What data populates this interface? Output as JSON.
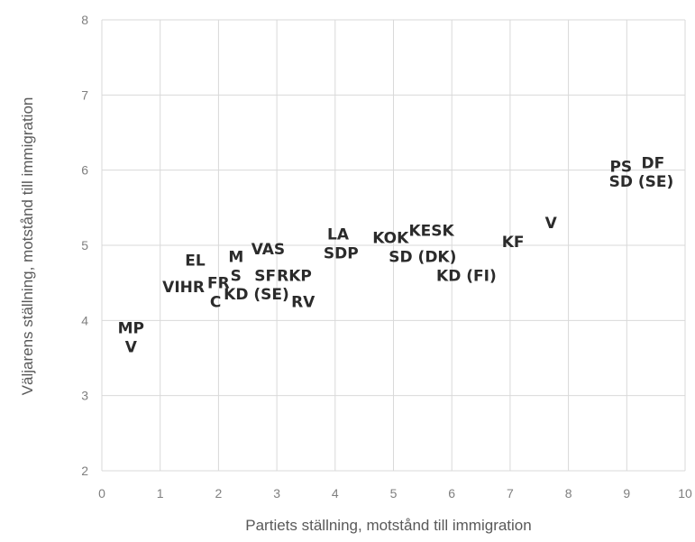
{
  "chart_data": {
    "type": "scatter",
    "xlabel": "Partiets ställning, motstånd till immigration",
    "ylabel": "Väljarens ställning, motstånd till immigration",
    "xlim": [
      0,
      10
    ],
    "ylim": [
      2,
      8
    ],
    "x_ticks": [
      "0",
      "1",
      "2",
      "3",
      "4",
      "5",
      "6",
      "7",
      "8",
      "9",
      "10"
    ],
    "y_ticks": [
      "2",
      "3",
      "4",
      "5",
      "6",
      "7",
      "8"
    ],
    "grid": true,
    "points": [
      {
        "label": "MP",
        "x": 0.5,
        "y": 3.9
      },
      {
        "label": "V",
        "x": 0.5,
        "y": 3.65
      },
      {
        "label": "VIHR",
        "x": 1.4,
        "y": 4.45
      },
      {
        "label": "EL",
        "x": 1.6,
        "y": 4.8
      },
      {
        "label": "FR",
        "x": 2.0,
        "y": 4.5
      },
      {
        "label": "C",
        "x": 1.95,
        "y": 4.25
      },
      {
        "label": "M",
        "x": 2.3,
        "y": 4.85
      },
      {
        "label": "S",
        "x": 2.3,
        "y": 4.6
      },
      {
        "label": "KD (SE)",
        "x": 2.65,
        "y": 4.35
      },
      {
        "label": "VAS",
        "x": 2.85,
        "y": 4.95
      },
      {
        "label": "SF",
        "x": 2.8,
        "y": 4.6
      },
      {
        "label": "RKP",
        "x": 3.3,
        "y": 4.6
      },
      {
        "label": "RV",
        "x": 3.45,
        "y": 4.25
      },
      {
        "label": "LA",
        "x": 4.05,
        "y": 5.15
      },
      {
        "label": "SDP",
        "x": 4.1,
        "y": 4.9
      },
      {
        "label": "KOK",
        "x": 4.95,
        "y": 5.1
      },
      {
        "label": "KESK",
        "x": 5.65,
        "y": 5.2
      },
      {
        "label": "SD (DK)",
        "x": 5.5,
        "y": 4.85
      },
      {
        "label": "KD (FI)",
        "x": 6.25,
        "y": 4.6
      },
      {
        "label": "KF",
        "x": 7.05,
        "y": 5.05
      },
      {
        "label": "V",
        "x": 7.7,
        "y": 5.3
      },
      {
        "label": "PS",
        "x": 8.9,
        "y": 6.05
      },
      {
        "label": "DF",
        "x": 9.45,
        "y": 6.1
      },
      {
        "label": "SD (SE)",
        "x": 9.25,
        "y": 5.85
      }
    ]
  }
}
